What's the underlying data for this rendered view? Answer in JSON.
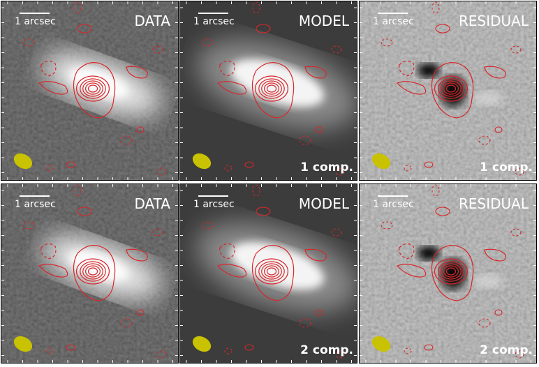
{
  "panels": [
    {
      "label": "DATA",
      "scale": "1 arcsec"
    },
    {
      "label": "MODEL",
      "scale": "1 arcsec",
      "comp": "1 comp."
    },
    {
      "label": "RESIDUAL",
      "scale": "1 arcsec",
      "comp": "1 comp."
    },
    {
      "label": "DATA",
      "scale": "1 arcsec"
    },
    {
      "label": "MODEL",
      "scale": "1 arcsec",
      "comp": "2 comp."
    },
    {
      "label": "RESIDUAL",
      "scale": "1 arcsec",
      "comp": "2 comp."
    }
  ]
}
